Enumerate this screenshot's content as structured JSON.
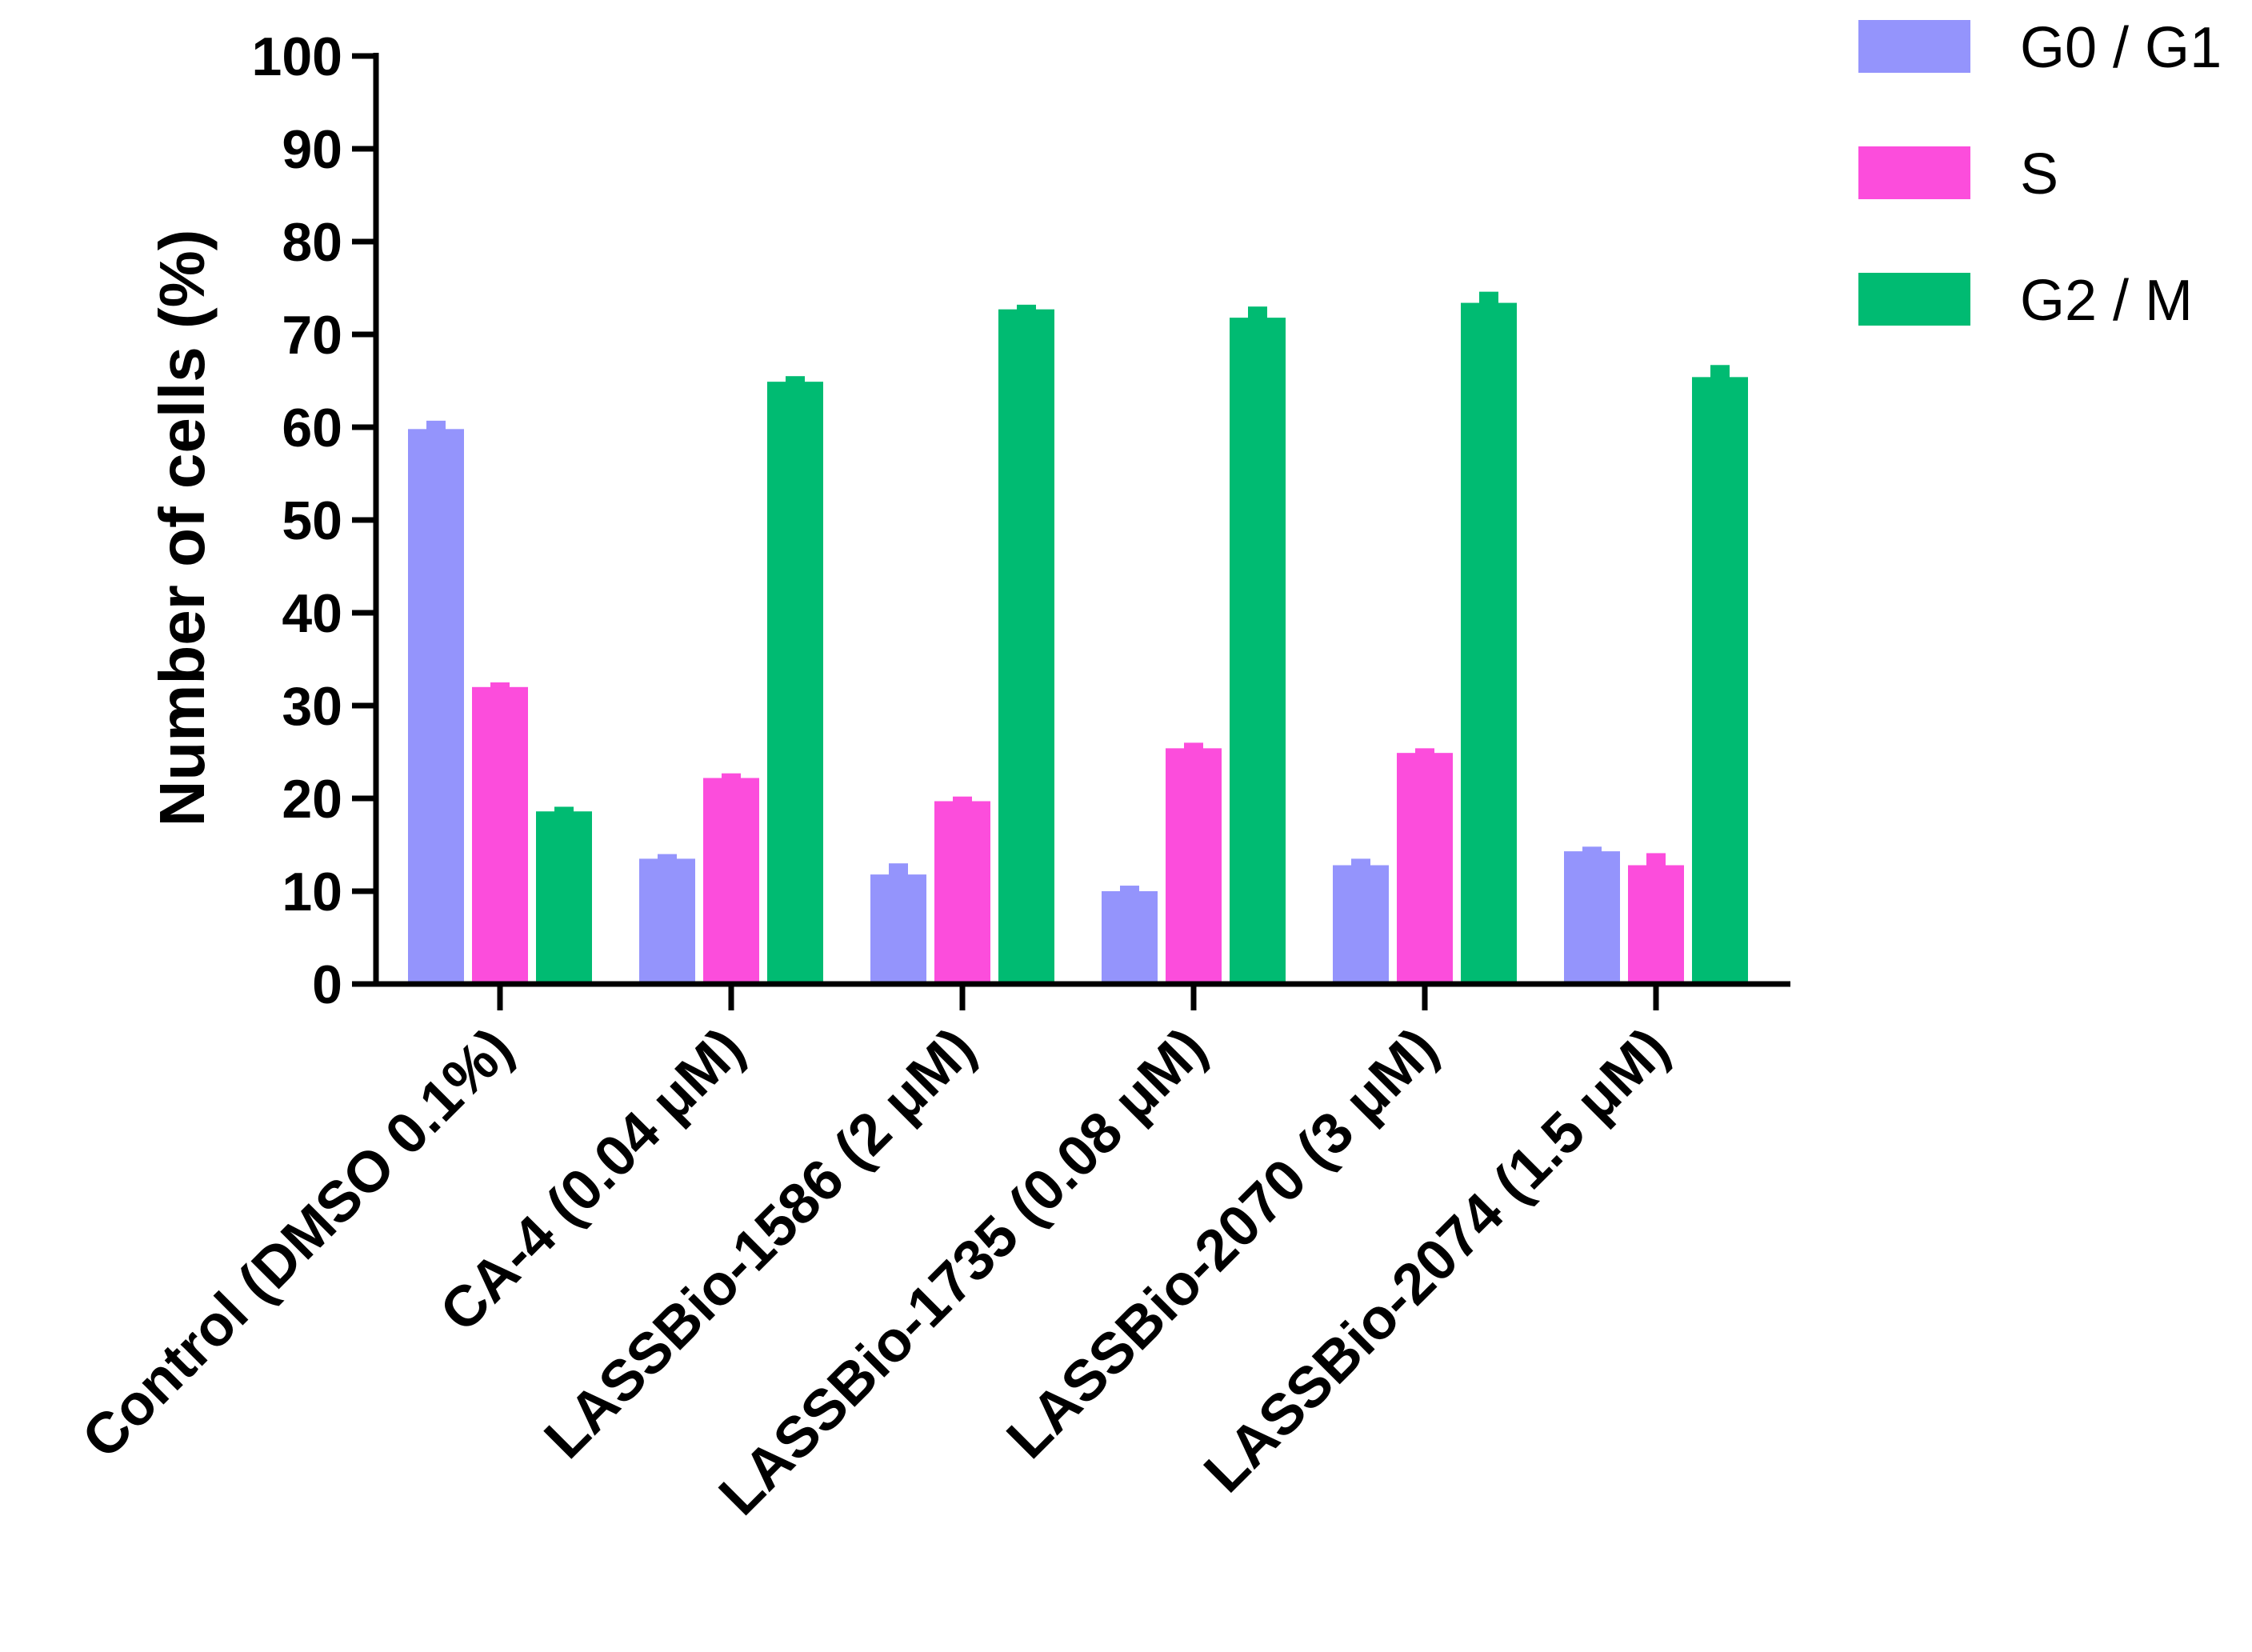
{
  "chart_data": {
    "type": "bar",
    "ylabel": "Number of cells (%)",
    "ylim": [
      0,
      100
    ],
    "yticks": [
      0,
      10,
      20,
      30,
      40,
      50,
      60,
      70,
      80,
      90,
      100
    ],
    "categories": [
      "Control (DMSO 0.1%)",
      "CA-4 (0.04 μM)",
      "LASSBio-1586 (2 μM)",
      "LASSBio-1735 (0.08 μM)",
      "LASSBio-2070 (3 μM)",
      "LASSBio-2074 (1.5 μM)"
    ],
    "series": [
      {
        "name": "G0 / G1",
        "color": "#9494fc",
        "values": [
          59.8,
          13.5,
          11.8,
          10.0,
          12.8,
          14.3
        ],
        "errors": [
          0.9,
          0.5,
          1.2,
          0.6,
          0.7,
          0.5
        ]
      },
      {
        "name": "S",
        "color": "#fc4ddc",
        "values": [
          32.0,
          22.2,
          19.7,
          25.4,
          24.9,
          12.8
        ],
        "errors": [
          0.5,
          0.5,
          0.5,
          0.6,
          0.5,
          1.3
        ]
      },
      {
        "name": "G2 / M",
        "color": "#00bb72",
        "values": [
          18.6,
          64.9,
          72.7,
          71.8,
          73.4,
          65.4
        ],
        "errors": [
          0.5,
          0.6,
          0.5,
          1.2,
          1.2,
          1.3
        ]
      }
    ],
    "legend_position": "top-right",
    "grid": false
  }
}
